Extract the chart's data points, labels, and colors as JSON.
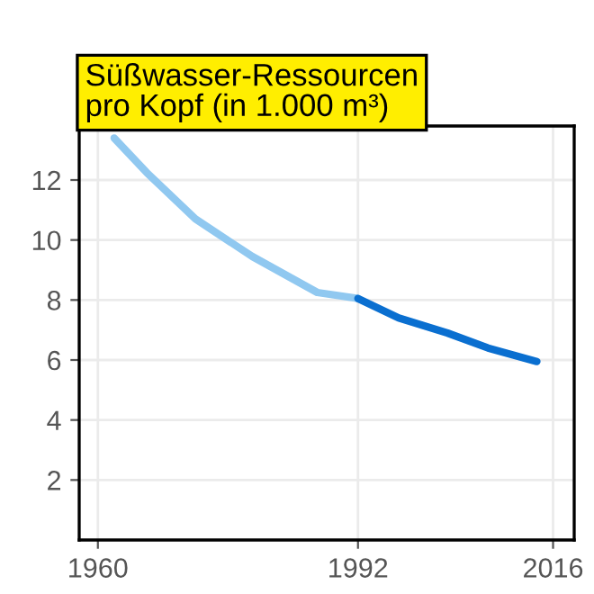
{
  "chart_data": {
    "type": "line",
    "title": "Süßwasser-Ressourcen\npro Kopf (in 1.000 m³)",
    "series": [
      {
        "color": "#90c8f0",
        "x": [
          1962,
          1966,
          1972,
          1979,
          1987,
          1992
        ],
        "values": [
          13.4,
          12.25,
          10.7,
          9.45,
          8.25,
          8.05
        ]
      },
      {
        "color": "#0a6fd0",
        "x": [
          1992,
          1997,
          2003,
          2008,
          2014
        ],
        "values": [
          8.05,
          7.4,
          6.9,
          6.4,
          5.95
        ]
      }
    ],
    "xlim": [
      1957.7,
      2018.6
    ],
    "xticks": [
      1960,
      1992,
      2016
    ],
    "ylim": [
      0,
      13.8
    ],
    "yticks": [
      2,
      4,
      6,
      8,
      10,
      12
    ],
    "grid": true,
    "legend": false,
    "marker": "none",
    "line_style": "solid"
  }
}
